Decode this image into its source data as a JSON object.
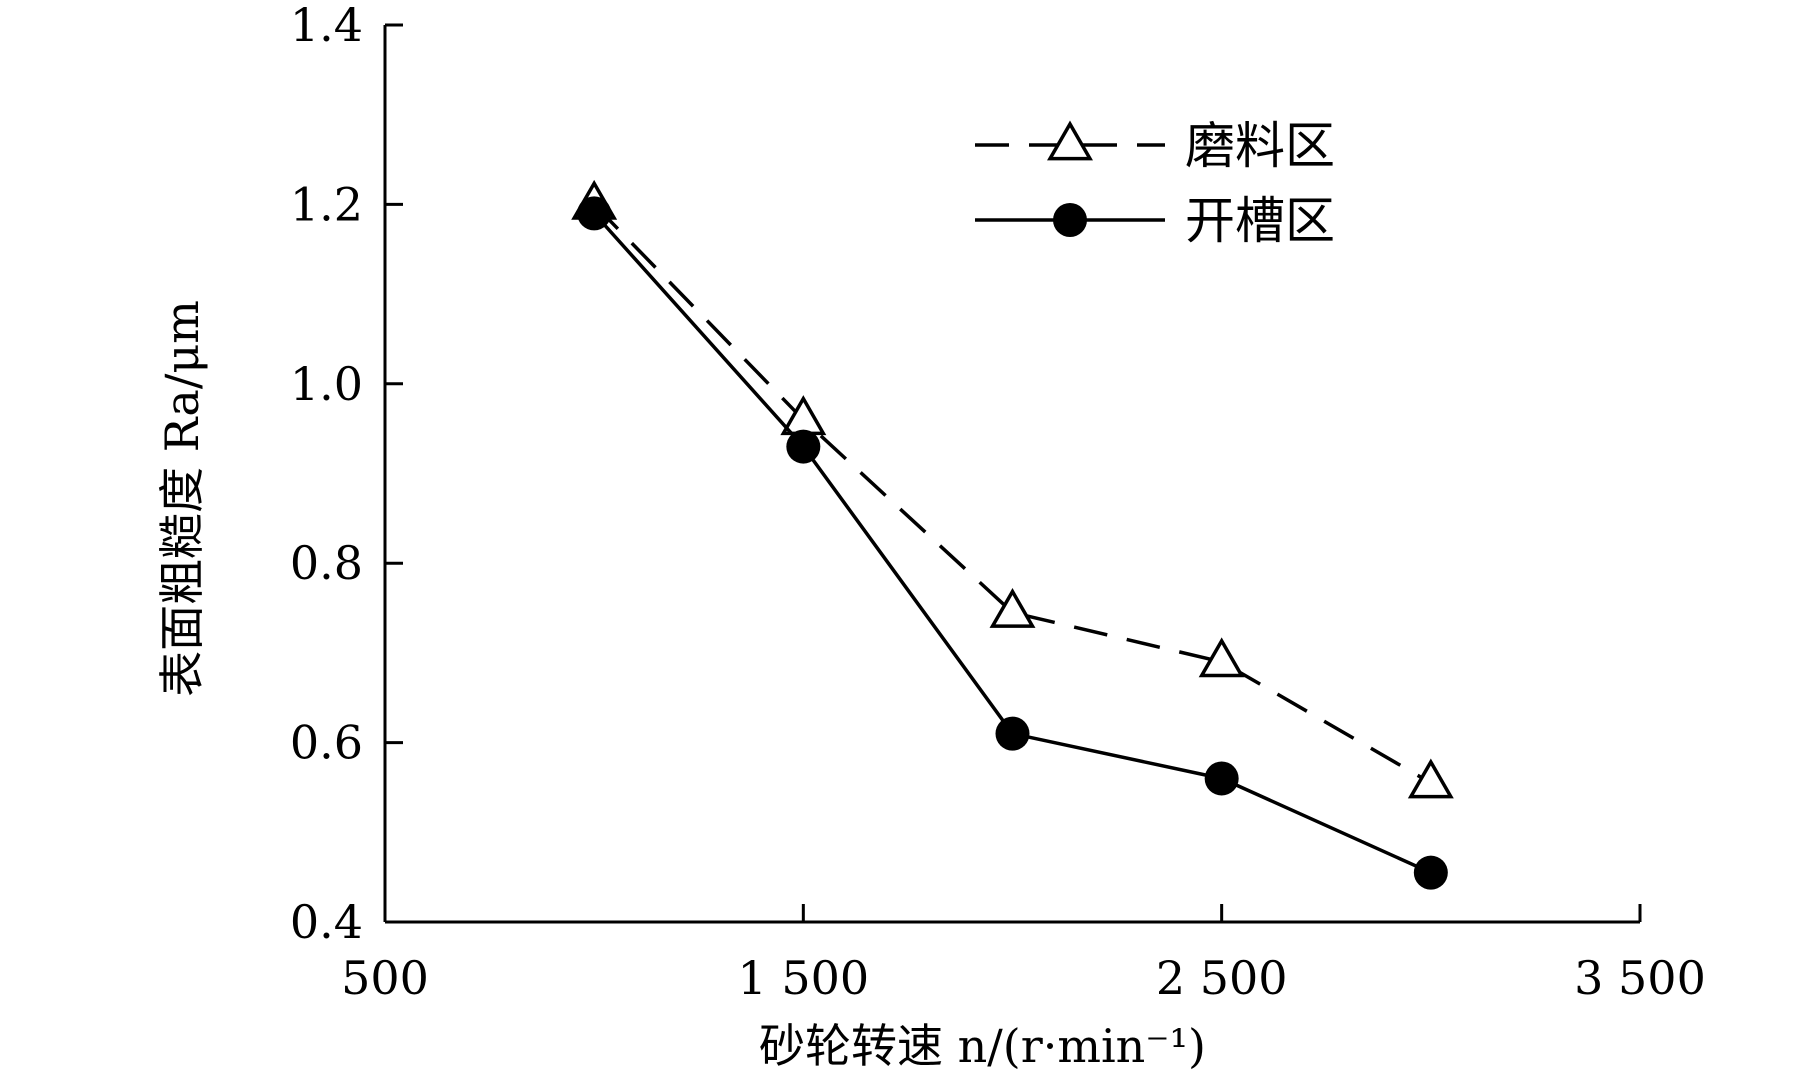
{
  "chart_data": {
    "type": "line",
    "title": "",
    "xlabel": "砂轮转速 n/(r·min⁻¹)",
    "ylabel": "表面粗糙度 Ra/μm",
    "xlim": [
      500,
      3500
    ],
    "ylim": [
      0.4,
      1.4
    ],
    "x_ticks": [
      500,
      1500,
      2500,
      3500
    ],
    "x_tick_labels": [
      "500",
      "1 500",
      "2 500",
      "3 500"
    ],
    "y_ticks": [
      0.4,
      0.6,
      0.8,
      1.0,
      1.2,
      1.4
    ],
    "y_tick_labels": [
      "0.4",
      "0.6",
      "0.8",
      "1.0",
      "1.2",
      "1.4"
    ],
    "grid": false,
    "legend_position": "top-right",
    "series": [
      {
        "name": "磨料区",
        "marker": "open-triangle",
        "line_style": "dashed",
        "color": "#000000",
        "x": [
          1000,
          1500,
          2000,
          2500,
          3000
        ],
        "values": [
          1.2,
          0.96,
          0.745,
          0.69,
          0.555
        ]
      },
      {
        "name": "开槽区",
        "marker": "filled-circle",
        "line_style": "solid",
        "color": "#000000",
        "x": [
          1000,
          1500,
          2000,
          2500,
          3000
        ],
        "values": [
          1.19,
          0.93,
          0.61,
          0.56,
          0.455
        ]
      }
    ]
  }
}
